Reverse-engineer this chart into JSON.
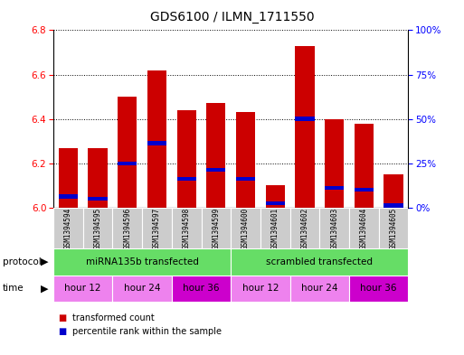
{
  "title": "GDS6100 / ILMN_1711550",
  "samples": [
    "GSM1394594",
    "GSM1394595",
    "GSM1394596",
    "GSM1394597",
    "GSM1394598",
    "GSM1394599",
    "GSM1394600",
    "GSM1394601",
    "GSM1394602",
    "GSM1394603",
    "GSM1394604",
    "GSM1394605"
  ],
  "red_values": [
    6.27,
    6.27,
    6.5,
    6.62,
    6.44,
    6.47,
    6.43,
    6.1,
    6.73,
    6.4,
    6.38,
    6.15
  ],
  "blue_values": [
    6.05,
    6.04,
    6.2,
    6.29,
    6.13,
    6.17,
    6.13,
    6.02,
    6.4,
    6.09,
    6.08,
    6.01
  ],
  "y_min": 6.0,
  "y_max": 6.8,
  "y_ticks_left": [
    6.0,
    6.2,
    6.4,
    6.6,
    6.8
  ],
  "y_ticks_right": [
    0,
    25,
    50,
    75,
    100
  ],
  "right_y_labels": [
    "0%",
    "25%",
    "50%",
    "75%",
    "100%"
  ],
  "protocol_labels": [
    "miRNA135b transfected",
    "scrambled transfected"
  ],
  "bar_color_red": "#cc0000",
  "bar_color_blue": "#0000cc",
  "protocol_color": "#66dd66",
  "time_color_light": "#ee82ee",
  "time_color_dark": "#cc00cc",
  "bg_color": "#ffffff",
  "sample_bg": "#cccccc"
}
